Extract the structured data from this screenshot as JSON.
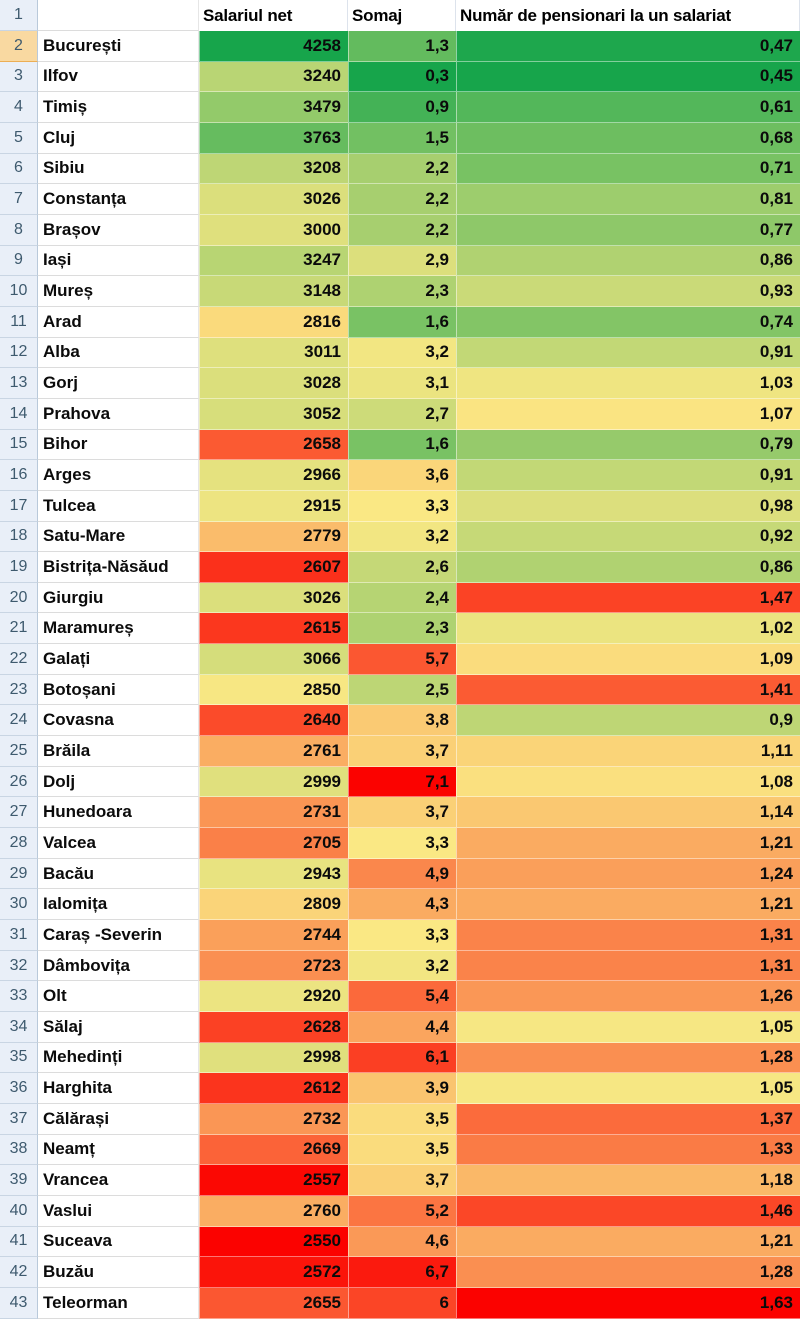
{
  "header": {
    "row_number": "1",
    "county_blank": "",
    "salary": "Salariul net",
    "somaj": "Somaj",
    "pensioners": "Număr de pensionari la un salariat"
  },
  "colorscale": {
    "green": "#17A54B",
    "yellow": "#FAE884",
    "red": "#FB0200"
  },
  "columns_direction": {
    "salary": "high_is_green",
    "somaj": "low_is_green",
    "pensioners": "low_is_green"
  },
  "theme": {
    "rowheader_bg": "#E9EFF8",
    "rowheader_active_bg": "#F9D9A1",
    "rowheader_text": "#3E5A6E",
    "active_row_number": "2"
  },
  "rows": [
    {
      "n": "2",
      "county": "București",
      "salary": "4258",
      "somaj": "1,3",
      "pensioners": "0,47"
    },
    {
      "n": "3",
      "county": "Ilfov",
      "salary": "3240",
      "somaj": "0,3",
      "pensioners": "0,45"
    },
    {
      "n": "4",
      "county": "Timiș",
      "salary": "3479",
      "somaj": "0,9",
      "pensioners": "0,61"
    },
    {
      "n": "5",
      "county": "Cluj",
      "salary": "3763",
      "somaj": "1,5",
      "pensioners": "0,68"
    },
    {
      "n": "6",
      "county": "Sibiu",
      "salary": "3208",
      "somaj": "2,2",
      "pensioners": "0,71"
    },
    {
      "n": "7",
      "county": "Constanța",
      "salary": "3026",
      "somaj": "2,2",
      "pensioners": "0,81"
    },
    {
      "n": "8",
      "county": "Brașov",
      "salary": "3000",
      "somaj": "2,2",
      "pensioners": "0,77"
    },
    {
      "n": "9",
      "county": "Iași",
      "salary": "3247",
      "somaj": "2,9",
      "pensioners": "0,86"
    },
    {
      "n": "10",
      "county": "Mureș",
      "salary": "3148",
      "somaj": "2,3",
      "pensioners": "0,93"
    },
    {
      "n": "11",
      "county": "Arad",
      "salary": "2816",
      "somaj": "1,6",
      "pensioners": "0,74"
    },
    {
      "n": "12",
      "county": "Alba",
      "salary": "3011",
      "somaj": "3,2",
      "pensioners": "0,91"
    },
    {
      "n": "13",
      "county": "Gorj",
      "salary": "3028",
      "somaj": "3,1",
      "pensioners": "1,03"
    },
    {
      "n": "14",
      "county": "Prahova",
      "salary": "3052",
      "somaj": "2,7",
      "pensioners": "1,07"
    },
    {
      "n": "15",
      "county": "Bihor",
      "salary": "2658",
      "somaj": "1,6",
      "pensioners": "0,79"
    },
    {
      "n": "16",
      "county": "Arges",
      "salary": "2966",
      "somaj": "3,6",
      "pensioners": "0,91"
    },
    {
      "n": "17",
      "county": "Tulcea",
      "salary": "2915",
      "somaj": "3,3",
      "pensioners": "0,98"
    },
    {
      "n": "18",
      "county": "Satu-Mare",
      "salary": "2779",
      "somaj": "3,2",
      "pensioners": "0,92"
    },
    {
      "n": "19",
      "county": "Bistrița-Năsăud",
      "salary": "2607",
      "somaj": "2,6",
      "pensioners": "0,86"
    },
    {
      "n": "20",
      "county": "Giurgiu",
      "salary": "3026",
      "somaj": "2,4",
      "pensioners": "1,47"
    },
    {
      "n": "21",
      "county": "Maramureș",
      "salary": "2615",
      "somaj": "2,3",
      "pensioners": "1,02"
    },
    {
      "n": "22",
      "county": "Galați",
      "salary": "3066",
      "somaj": "5,7",
      "pensioners": "1,09"
    },
    {
      "n": "23",
      "county": "Botoșani",
      "salary": "2850",
      "somaj": "2,5",
      "pensioners": "1,41"
    },
    {
      "n": "24",
      "county": "Covasna",
      "salary": "2640",
      "somaj": "3,8",
      "pensioners": "0,9"
    },
    {
      "n": "25",
      "county": "Brăila",
      "salary": "2761",
      "somaj": "3,7",
      "pensioners": "1,11"
    },
    {
      "n": "26",
      "county": "Dolj",
      "salary": "2999",
      "somaj": "7,1",
      "pensioners": "1,08"
    },
    {
      "n": "27",
      "county": "Hunedoara",
      "salary": "2731",
      "somaj": "3,7",
      "pensioners": "1,14"
    },
    {
      "n": "28",
      "county": "Valcea",
      "salary": "2705",
      "somaj": "3,3",
      "pensioners": "1,21"
    },
    {
      "n": "29",
      "county": "Bacău",
      "salary": "2943",
      "somaj": "4,9",
      "pensioners": "1,24"
    },
    {
      "n": "30",
      "county": "Ialomița",
      "salary": "2809",
      "somaj": "4,3",
      "pensioners": "1,21"
    },
    {
      "n": "31",
      "county": "Caraș -Severin",
      "salary": "2744",
      "somaj": "3,3",
      "pensioners": "1,31"
    },
    {
      "n": "32",
      "county": "Dâmbovița",
      "salary": "2723",
      "somaj": "3,2",
      "pensioners": "1,31"
    },
    {
      "n": "33",
      "county": "Olt",
      "salary": "2920",
      "somaj": "5,4",
      "pensioners": "1,26"
    },
    {
      "n": "34",
      "county": "Sălaj",
      "salary": "2628",
      "somaj": "4,4",
      "pensioners": "1,05"
    },
    {
      "n": "35",
      "county": "Mehedinți",
      "salary": "2998",
      "somaj": "6,1",
      "pensioners": "1,28"
    },
    {
      "n": "36",
      "county": "Harghita",
      "salary": "2612",
      "somaj": "3,9",
      "pensioners": "1,05"
    },
    {
      "n": "37",
      "county": "Călărași",
      "salary": "2732",
      "somaj": "3,5",
      "pensioners": "1,37"
    },
    {
      "n": "38",
      "county": "Neamț",
      "salary": "2669",
      "somaj": "3,5",
      "pensioners": "1,33"
    },
    {
      "n": "39",
      "county": "Vrancea",
      "salary": "2557",
      "somaj": "3,7",
      "pensioners": "1,18"
    },
    {
      "n": "40",
      "county": "Vaslui",
      "salary": "2760",
      "somaj": "5,2",
      "pensioners": "1,46"
    },
    {
      "n": "41",
      "county": "Suceava",
      "salary": "2550",
      "somaj": "4,6",
      "pensioners": "1,21"
    },
    {
      "n": "42",
      "county": "Buzău",
      "salary": "2572",
      "somaj": "6,7",
      "pensioners": "1,28"
    },
    {
      "n": "43",
      "county": "Teleorman",
      "salary": "2655",
      "somaj": "6",
      "pensioners": "1,63"
    }
  ]
}
